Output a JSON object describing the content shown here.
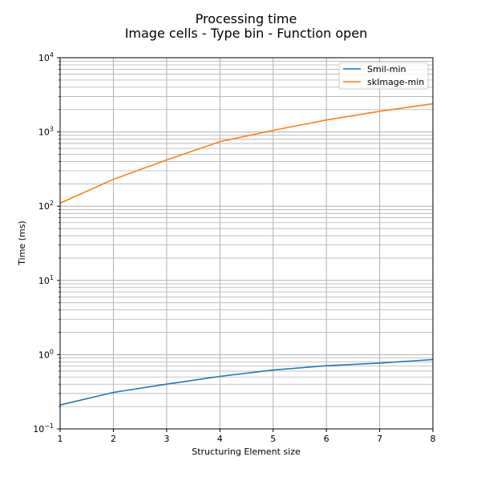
{
  "chart_data": {
    "type": "line",
    "title": "Processing time",
    "subtitle": "Image cells - Type bin - Function open",
    "xlabel": "Structuring Element size",
    "ylabel": "Time (ms)",
    "yscale": "log",
    "xlim": [
      1,
      8
    ],
    "ylim": [
      0.1,
      10000
    ],
    "grid": true,
    "grid_minor_y": true,
    "legend_position": "top-right",
    "x": [
      1,
      2,
      3,
      4,
      5,
      6,
      7,
      8
    ],
    "xticks": [
      "1",
      "2",
      "3",
      "4",
      "5",
      "6",
      "7",
      "8"
    ],
    "yticks": [
      {
        "base": "10",
        "exp": "−1",
        "value": 0.1
      },
      {
        "base": "10",
        "exp": "0",
        "value": 1
      },
      {
        "base": "10",
        "exp": "1",
        "value": 10
      },
      {
        "base": "10",
        "exp": "2",
        "value": 100
      },
      {
        "base": "10",
        "exp": "3",
        "value": 1000
      },
      {
        "base": "10",
        "exp": "4",
        "value": 10000
      }
    ],
    "series": [
      {
        "name": "Smil-min",
        "color": "#1f77b4",
        "values": [
          0.21,
          0.31,
          0.4,
          0.51,
          0.62,
          0.71,
          0.77,
          0.86
        ]
      },
      {
        "name": "skImage-min",
        "color": "#ff7f0e",
        "values": [
          110,
          230,
          420,
          740,
          1050,
          1450,
          1900,
          2400
        ]
      }
    ]
  }
}
